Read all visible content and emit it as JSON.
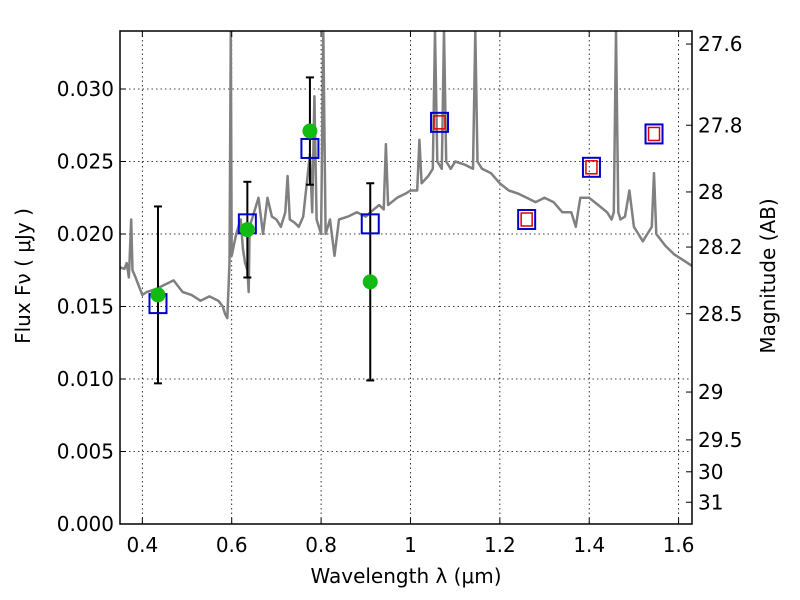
{
  "chart_data": {
    "type": "scatter",
    "xlabel": "Wavelength  λ (μm)",
    "ylabel": "Flux  Fν  ( μJy )",
    "y2label": "Magnitude (AB)",
    "xlim": [
      0.35,
      1.63
    ],
    "ylim": [
      0.0,
      0.034
    ],
    "grid": true,
    "x_ticks": [
      0.4,
      0.6,
      0.8,
      1.0,
      1.2,
      1.4,
      1.6
    ],
    "x_tick_labels": [
      "0.4",
      "0.6",
      "0.8",
      "1",
      "1.2",
      "1.4",
      "1.6"
    ],
    "y_ticks": [
      0.0,
      0.005,
      0.01,
      0.015,
      0.02,
      0.025,
      0.03
    ],
    "y_tick_labels": [
      "0.000",
      "0.005",
      "0.010",
      "0.015",
      "0.020",
      "0.025",
      "0.030"
    ],
    "mag_ticks": [
      {
        "label": "27.6",
        "flux": 0.0331
      },
      {
        "label": "27.8",
        "flux": 0.0275
      },
      {
        "label": "28",
        "flux": 0.0229
      },
      {
        "label": "28.2",
        "flux": 0.0191
      },
      {
        "label": "28.5",
        "flux": 0.0145
      },
      {
        "label": "29",
        "flux": 0.0091
      },
      {
        "label": "29.5",
        "flux": 0.0058
      },
      {
        "label": "30",
        "flux": 0.0036
      },
      {
        "label": "31",
        "flux": 0.0015
      }
    ],
    "series": [
      {
        "kind": "line",
        "color": "#808080",
        "points": [
          [
            0.35,
            0.0177
          ],
          [
            0.36,
            0.0176
          ],
          [
            0.365,
            0.018
          ],
          [
            0.37,
            0.017
          ],
          [
            0.375,
            0.021
          ],
          [
            0.378,
            0.0175
          ],
          [
            0.385,
            0.017
          ],
          [
            0.4,
            0.0158
          ],
          [
            0.41,
            0.016
          ],
          [
            0.43,
            0.0162
          ],
          [
            0.45,
            0.0165
          ],
          [
            0.47,
            0.0168
          ],
          [
            0.49,
            0.016
          ],
          [
            0.51,
            0.0158
          ],
          [
            0.53,
            0.0154
          ],
          [
            0.55,
            0.0157
          ],
          [
            0.57,
            0.0154
          ],
          [
            0.58,
            0.015
          ],
          [
            0.585,
            0.0145
          ],
          [
            0.59,
            0.0142
          ],
          [
            0.595,
            0.018
          ],
          [
            0.598,
            0.034
          ],
          [
            0.6,
            0.0185
          ],
          [
            0.61,
            0.02
          ],
          [
            0.62,
            0.021
          ],
          [
            0.625,
            0.019
          ],
          [
            0.63,
            0.018
          ],
          [
            0.635,
            0.0175
          ],
          [
            0.638,
            0.016
          ],
          [
            0.64,
            0.0205
          ],
          [
            0.65,
            0.0215
          ],
          [
            0.66,
            0.0225
          ],
          [
            0.67,
            0.02
          ],
          [
            0.68,
            0.0225
          ],
          [
            0.69,
            0.0212
          ],
          [
            0.7,
            0.021
          ],
          [
            0.71,
            0.0205
          ],
          [
            0.72,
            0.0215
          ],
          [
            0.725,
            0.024
          ],
          [
            0.73,
            0.021
          ],
          [
            0.74,
            0.0208
          ],
          [
            0.75,
            0.0205
          ],
          [
            0.76,
            0.0212
          ],
          [
            0.775,
            0.0255
          ],
          [
            0.78,
            0.0215
          ],
          [
            0.785,
            0.0295
          ],
          [
            0.79,
            0.021
          ],
          [
            0.8,
            0.02
          ],
          [
            0.805,
            0.034
          ],
          [
            0.81,
            0.02
          ],
          [
            0.82,
            0.021
          ],
          [
            0.83,
            0.0185
          ],
          [
            0.84,
            0.021
          ],
          [
            0.86,
            0.0212
          ],
          [
            0.88,
            0.0215
          ],
          [
            0.9,
            0.0212
          ],
          [
            0.91,
            0.0215
          ],
          [
            0.93,
            0.022
          ],
          [
            0.94,
            0.0217
          ],
          [
            0.945,
            0.0262
          ],
          [
            0.95,
            0.022
          ],
          [
            0.97,
            0.0225
          ],
          [
            0.99,
            0.0228
          ],
          [
            1.0,
            0.023
          ],
          [
            1.015,
            0.023
          ],
          [
            1.02,
            0.0265
          ],
          [
            1.025,
            0.0235
          ],
          [
            1.04,
            0.024
          ],
          [
            1.05,
            0.0245
          ],
          [
            1.055,
            0.034
          ],
          [
            1.06,
            0.025
          ],
          [
            1.07,
            0.0245
          ],
          [
            1.075,
            0.034
          ],
          [
            1.08,
            0.025
          ],
          [
            1.09,
            0.0245
          ],
          [
            1.1,
            0.025
          ],
          [
            1.12,
            0.0248
          ],
          [
            1.14,
            0.0245
          ],
          [
            1.145,
            0.034
          ],
          [
            1.15,
            0.025
          ],
          [
            1.16,
            0.0245
          ],
          [
            1.18,
            0.0242
          ],
          [
            1.2,
            0.0235
          ],
          [
            1.22,
            0.023
          ],
          [
            1.24,
            0.0228
          ],
          [
            1.26,
            0.0225
          ],
          [
            1.28,
            0.0222
          ],
          [
            1.3,
            0.0225
          ],
          [
            1.32,
            0.0222
          ],
          [
            1.34,
            0.0215
          ],
          [
            1.36,
            0.0215
          ],
          [
            1.37,
            0.0205
          ],
          [
            1.375,
            0.0215
          ],
          [
            1.38,
            0.0225
          ],
          [
            1.4,
            0.0225
          ],
          [
            1.42,
            0.022
          ],
          [
            1.44,
            0.0215
          ],
          [
            1.45,
            0.021
          ],
          [
            1.455,
            0.0215
          ],
          [
            1.46,
            0.034
          ],
          [
            1.465,
            0.0215
          ],
          [
            1.47,
            0.021
          ],
          [
            1.48,
            0.0212
          ],
          [
            1.49,
            0.023
          ],
          [
            1.5,
            0.0205
          ],
          [
            1.51,
            0.02
          ],
          [
            1.52,
            0.0195
          ],
          [
            1.53,
            0.02
          ],
          [
            1.54,
            0.0205
          ],
          [
            1.545,
            0.0242
          ],
          [
            1.55,
            0.02
          ],
          [
            1.57,
            0.0192
          ],
          [
            1.59,
            0.0186
          ],
          [
            1.61,
            0.0182
          ],
          [
            1.63,
            0.0178
          ]
        ]
      },
      {
        "kind": "points",
        "marker": "circle",
        "color": "#11bb11",
        "points": [
          [
            0.435,
            0.0158
          ],
          [
            0.635,
            0.0203
          ],
          [
            0.775,
            0.0271
          ],
          [
            0.91,
            0.0167
          ]
        ],
        "err": [
          0.0061,
          0.0033,
          0.0037,
          0.0068
        ]
      },
      {
        "kind": "points",
        "marker": "square",
        "color": "#0000cc",
        "points": [
          [
            0.435,
            0.0152
          ],
          [
            0.635,
            0.0207
          ],
          [
            0.775,
            0.0259
          ],
          [
            0.91,
            0.0207
          ],
          [
            1.065,
            0.0277
          ],
          [
            1.26,
            0.021
          ],
          [
            1.405,
            0.0246
          ],
          [
            1.545,
            0.0269
          ]
        ]
      },
      {
        "kind": "points",
        "marker": "square-small",
        "color": "#dd0000",
        "points": [
          [
            1.065,
            0.0277
          ],
          [
            1.26,
            0.021
          ],
          [
            1.405,
            0.0246
          ],
          [
            1.545,
            0.0269
          ]
        ]
      }
    ]
  }
}
